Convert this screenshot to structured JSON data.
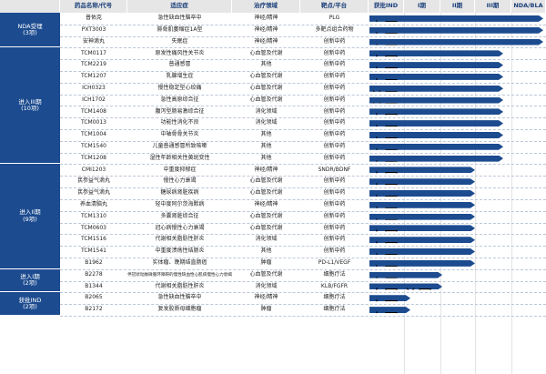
{
  "header": {
    "columns": [
      "药品名称/代号",
      "适应症",
      "治疗领域",
      "靶点/平台",
      "获批IND",
      "I期",
      "II期",
      "III期",
      "NDA/BLA"
    ]
  },
  "groups": [
    {
      "label": "NDA受理",
      "count": "(3项)",
      "rows": [
        [
          "普佑克",
          "急性缺血性脑卒中",
          "神经/精神",
          "PLG",
          "中国"
        ],
        [
          "PXT3003",
          "腓骨肌萎缩症1A型",
          "神经/精神",
          "多靶点组合药物",
          "中国"
        ],
        [
          "安神滴丸",
          "失眠症",
          "神经/精神",
          "创新中药",
          "中国"
        ]
      ]
    },
    {
      "label": "进入III期",
      "count": "(10项)",
      "rows": [
        [
          "TCM0117",
          "原发性痛风性关节炎",
          "心血管及代谢",
          "创新中药",
          "中国"
        ],
        [
          "TCM2219",
          "普通感冒",
          "其他",
          "创新中药",
          "中国"
        ],
        [
          "TCM1207",
          "乳腺增生症",
          "心血管及代谢",
          "创新中药",
          "中国"
        ],
        [
          "ICH0323",
          "慢性稳定型心绞痛",
          "心血管及代谢",
          "创新中药",
          "美国"
        ],
        [
          "ICH1702",
          "急性高原综合征",
          "心血管及代谢",
          "创新中药",
          "美国"
        ],
        [
          "TCM1408",
          "腹泻型肠易激综合征",
          "消化领域",
          "创新中药",
          "中国"
        ],
        [
          "TCM0013",
          "功能性消化不良",
          "消化领域",
          "创新中药",
          "中国"
        ],
        [
          "TCM1004",
          "中轴骨骨关节炎",
          "其他",
          "创新中药",
          "中国"
        ],
        [
          "TCM1540",
          "儿童普通感冒所致咳嗽",
          "其他",
          "创新中药",
          "中国"
        ],
        [
          "TCM1208",
          "湿性年龄相关性黄斑变性",
          "其他",
          "创新中药",
          "中国"
        ]
      ]
    },
    {
      "label": "进入II期",
      "count": "(9项)",
      "rows": [
        [
          "CMI1203",
          "中重度抑郁症",
          "神经/精神",
          "SNDR/BDNF",
          "中国"
        ],
        [
          "芪参益气滴丸",
          "慢性心力衰竭",
          "心血管及代谢",
          "创新中药",
          "中国"
        ],
        [
          "芪参益气滴丸",
          "糖尿病肾脏疾病",
          "心血管及代谢",
          "创新中药",
          "中国"
        ],
        [
          "养血清脑丸",
          "轻中度阿尔茨海默病",
          "神经/精神",
          "创新中药",
          "中国"
        ],
        [
          "TCM1310",
          "多囊肾脏综合征",
          "心血管及代谢",
          "创新中药",
          "中国"
        ],
        [
          "TCM0603",
          "冠心病慢性心力衰竭",
          "心血管及代谢",
          "创新中药",
          "中国"
        ],
        [
          "TCM1516",
          "代谢相关脂肪性肝炎",
          "消化领域",
          "创新中药",
          "中国"
        ],
        [
          "TCM1541",
          "中重度溃疡性结肠炎",
          "其他",
          "创新中药",
          "中国"
        ],
        [
          "B1962",
          "实体瘤、晚期结直肠癌",
          "肿瘤",
          "PD-L1/VEGF",
          "中国"
        ]
      ]
    },
    {
      "label": "进入I期",
      "count": "(2项)",
      "rows": [
        [
          "B2278",
          "伴冠状动脉微循环障碍的慢性缺血性心肌病慢性心力衰竭",
          "心血管及代谢",
          "细胞疗法",
          "中国"
        ],
        [
          "B1344",
          "代谢相关脂肪性肝炎",
          "消化领域",
          "KLB/FGFR",
          "中国,美国"
        ]
      ]
    },
    {
      "label": "获批IND",
      "count": "(2项)",
      "rows": [
        [
          "B2065",
          "急性缺血性脑卒中",
          "神经/精神",
          "细胞疗法",
          "中国,美国"
        ],
        [
          "B2172",
          "复发胶质母细胞瘤",
          "肿瘤",
          "细胞疗法",
          "中国"
        ]
      ]
    }
  ]
}
